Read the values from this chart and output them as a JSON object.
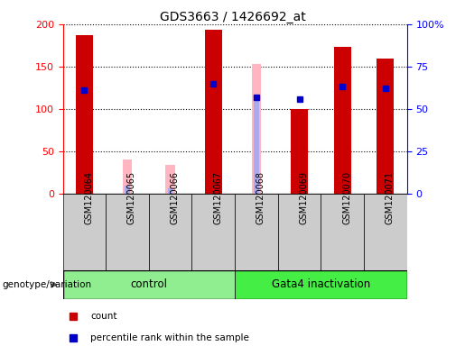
{
  "title": "GDS3663 / 1426692_at",
  "samples": [
    "GSM120064",
    "GSM120065",
    "GSM120066",
    "GSM120067",
    "GSM120068",
    "GSM120069",
    "GSM120070",
    "GSM120071"
  ],
  "count_values": [
    187,
    0,
    0,
    193,
    0,
    100,
    173,
    160
  ],
  "percentile_rank": [
    61,
    null,
    null,
    65,
    57,
    56,
    63,
    62
  ],
  "absent_value": [
    null,
    40,
    34,
    null,
    153,
    null,
    null,
    null
  ],
  "absent_rank": [
    null,
    5,
    3,
    null,
    58,
    null,
    null,
    null
  ],
  "ylim_left": [
    0,
    200
  ],
  "ylim_right": [
    0,
    100
  ],
  "left_ticks": [
    0,
    50,
    100,
    150,
    200
  ],
  "right_ticks": [
    0,
    25,
    50,
    75,
    100
  ],
  "right_tick_labels": [
    "0",
    "25",
    "50",
    "75",
    "100%"
  ],
  "bar_color_red": "#CC0000",
  "bar_color_pink": "#FFB6C1",
  "bar_color_blue": "#0000CC",
  "bar_color_lightblue": "#AAAAEE",
  "bar_width": 0.4,
  "blue_marker_size": 5,
  "control_color": "#90EE90",
  "gata4_color": "#44EE44"
}
